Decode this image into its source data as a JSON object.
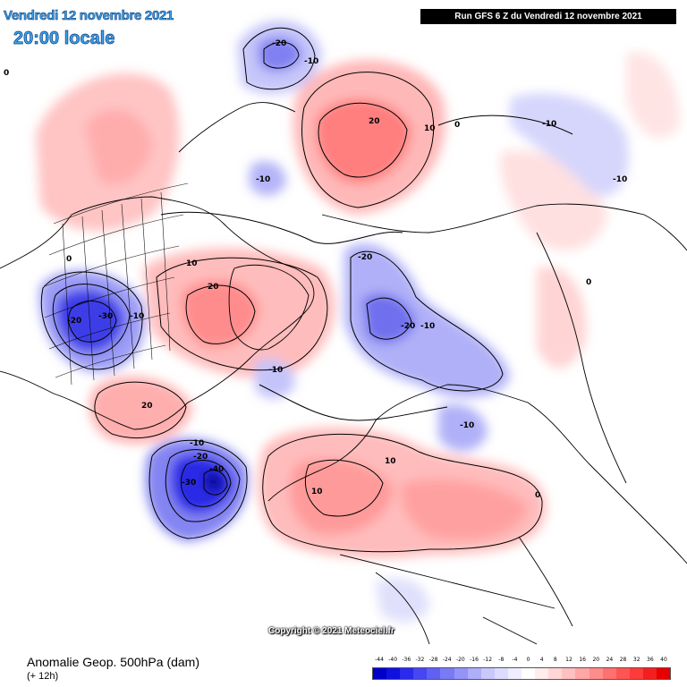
{
  "header": {
    "date": "Vendredi 12 novembre 2021",
    "time": "20:00 locale",
    "run": "Run GFS 6 Z du Vendredi 12 novembre 2021"
  },
  "copyright": "Copyright © 2021 Meteociel.fr",
  "footer": {
    "title": "Anomalie Geop. 500hPa (dam)",
    "subtitle": "(+ 12h)"
  },
  "legend": {
    "labels": [
      "-44",
      "-40",
      "-36",
      "-32",
      "-28",
      "-24",
      "-20",
      "-16",
      "-12",
      "-8",
      "-4",
      "0",
      "4",
      "8",
      "12",
      "16",
      "20",
      "24",
      "28",
      "32",
      "36",
      "40"
    ],
    "colors": [
      "#0000c8",
      "#1010e0",
      "#2a2aee",
      "#4646f2",
      "#6060f4",
      "#7a7af6",
      "#9494f8",
      "#aeaefa",
      "#c8c8fc",
      "#dcdcfe",
      "#eeeeff",
      "#ffffff",
      "#ffecec",
      "#ffd6d6",
      "#ffc0c0",
      "#ffa6a6",
      "#ff8c8c",
      "#ff7070",
      "#ff5454",
      "#ff3a3a",
      "#f51e1e",
      "#e80000"
    ]
  },
  "map_labels": [
    {
      "id": "nw-ocean-1",
      "text": "0"
    },
    {
      "id": "alaska-neg",
      "text": "-20"
    },
    {
      "id": "alaska-neg-outer",
      "text": "-10"
    },
    {
      "id": "siberia-pos",
      "text": "20"
    },
    {
      "id": "siberia-pos-outer",
      "text": "10"
    },
    {
      "id": "siberia-zero",
      "text": "0"
    },
    {
      "id": "pacific-neg-a",
      "text": "-10"
    },
    {
      "id": "pacific-neg-b",
      "text": "-10"
    },
    {
      "id": "pacific-neg-c",
      "text": "-10"
    },
    {
      "id": "canada-pos-outer",
      "text": "10"
    },
    {
      "id": "canada-pos",
      "text": "20"
    },
    {
      "id": "arctic-neg",
      "text": "-20"
    },
    {
      "id": "arctic-neg-b",
      "text": "-20"
    },
    {
      "id": "arctic-neg-outer",
      "text": "-10"
    },
    {
      "id": "hudson-zero",
      "text": "0"
    },
    {
      "id": "us-neg-a",
      "text": "-20"
    },
    {
      "id": "us-neg-b",
      "text": "-30"
    },
    {
      "id": "us-neg-outer",
      "text": "-10"
    },
    {
      "id": "greenland-neg",
      "text": "-10"
    },
    {
      "id": "gulf-pos",
      "text": "20"
    },
    {
      "id": "russia-neg",
      "text": "-10"
    },
    {
      "id": "asia-zero",
      "text": "0"
    },
    {
      "id": "atlantic-neg-a",
      "text": "-10"
    },
    {
      "id": "atlantic-neg-b",
      "text": "-20"
    },
    {
      "id": "atlantic-neg-c",
      "text": "-40"
    },
    {
      "id": "atlantic-neg-d",
      "text": "-30"
    },
    {
      "id": "europe-pos-a",
      "text": "10"
    },
    {
      "id": "europe-pos-b",
      "text": "10"
    },
    {
      "id": "europe-zero",
      "text": "0"
    }
  ]
}
